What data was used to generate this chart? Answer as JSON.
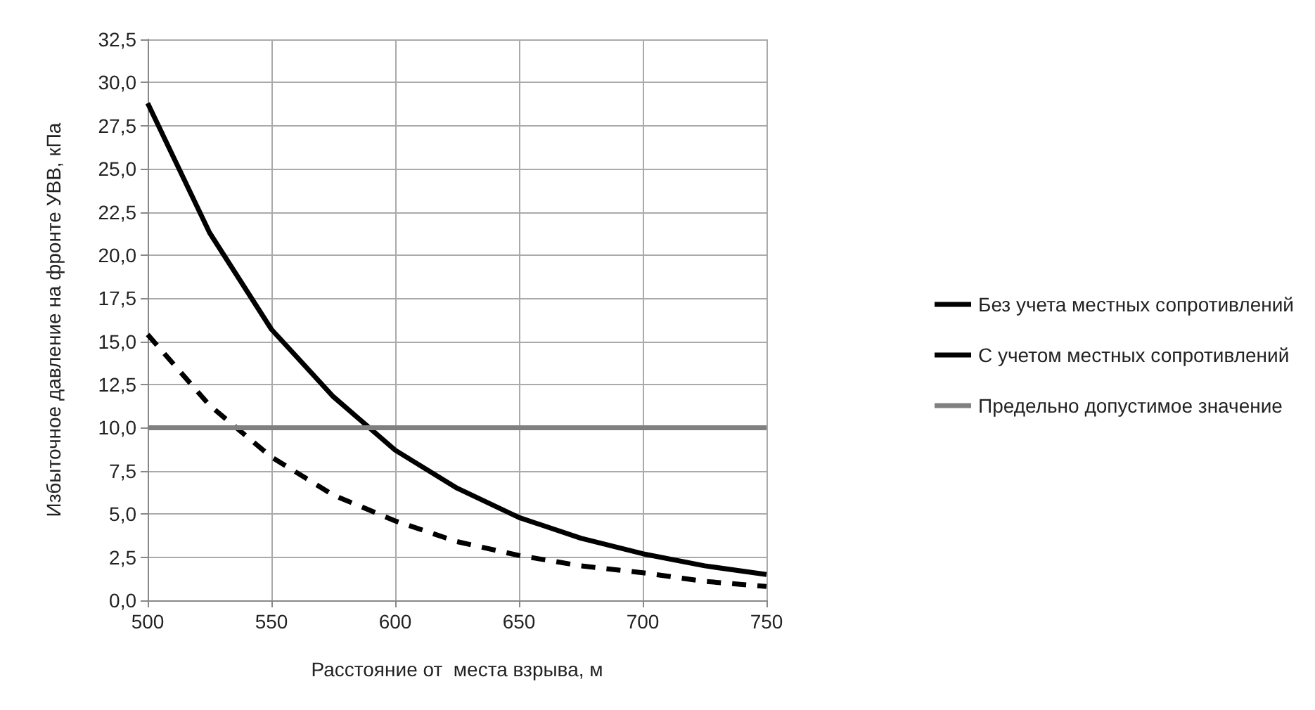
{
  "chart_data": {
    "type": "line",
    "xlabel": "Расстояние от  места взрыва, м",
    "ylabel": "Избыточное давление на фронте УВВ, кПа",
    "x": [
      500,
      525,
      550,
      575,
      600,
      625,
      650,
      675,
      700,
      725,
      750
    ],
    "series": [
      {
        "name": "Без учета местных сопротивлений",
        "color": "#000000",
        "line_style": "solid",
        "values": [
          28.8,
          21.3,
          15.7,
          11.8,
          8.7,
          6.5,
          4.8,
          3.6,
          2.7,
          2.0,
          1.5
        ]
      },
      {
        "name": "С учетом местных сопротивлений",
        "color": "#000000",
        "line_style": "dashed",
        "values": [
          15.4,
          11.3,
          8.3,
          6.1,
          4.6,
          3.4,
          2.6,
          2.0,
          1.6,
          1.1,
          0.8
        ]
      },
      {
        "name": "Предельно допустимое значение",
        "color": "#808080",
        "line_style": "solid",
        "x": [
          500,
          750
        ],
        "values": [
          10,
          10
        ]
      }
    ],
    "xlim": [
      500,
      750
    ],
    "xticks": [
      500,
      550,
      600,
      650,
      700,
      750
    ],
    "ylim": [
      0,
      32.5
    ],
    "yticks": [
      {
        "value": 0,
        "label": "0,0"
      },
      {
        "value": 2.5,
        "label": "2,5"
      },
      {
        "value": 5,
        "label": "5,0"
      },
      {
        "value": 7.5,
        "label": "7,5"
      },
      {
        "value": 10,
        "label": "10,0"
      },
      {
        "value": 12.5,
        "label": "12,5"
      },
      {
        "value": 15,
        "label": "15,0"
      },
      {
        "value": 17.5,
        "label": "17,5"
      },
      {
        "value": 20,
        "label": "20,0"
      },
      {
        "value": 22.5,
        "label": "22,5"
      },
      {
        "value": 25,
        "label": "25,0"
      },
      {
        "value": 27.5,
        "label": "27,5"
      },
      {
        "value": 30,
        "label": "30,0"
      },
      {
        "value": 32.5,
        "label": "32,5"
      }
    ],
    "grid": true,
    "legend": "right",
    "marker": "none"
  }
}
